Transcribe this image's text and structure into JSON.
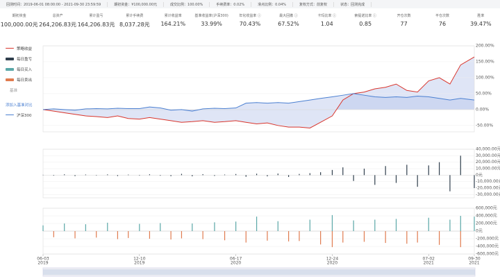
{
  "info": [
    "回测时间：2019-06-01 08:00:00 - 2021-09-30 23:59:59",
    "期初资金：¥100,000.00元",
    "成交比例：100.00%",
    "手续费率：0.02%",
    "滑点比例：0.04%",
    "复权方式：前复权",
    "状态：回测完成"
  ],
  "stats": [
    {
      "label": "期初资金",
      "value": "100,000.00元"
    },
    {
      "label": "总资产",
      "value": "264,206.83元"
    },
    {
      "label": "累计盈亏",
      "value": "164,206.83元"
    },
    {
      "label": "累计手续费",
      "value": "8,037.28元"
    },
    {
      "label": "累计收益率",
      "value": "164.21%"
    },
    {
      "label": "基准收益率(沪深300)",
      "value": "33.99%"
    },
    {
      "label": "年化收益率 ⓘ",
      "value": "70.43%"
    },
    {
      "label": "最大回撤 ⓘ",
      "value": "67.52%"
    },
    {
      "label": "卡玛比率 ⓘ",
      "value": "1.04"
    },
    {
      "label": "索提诺比率 ⓘ",
      "value": "0.85"
    },
    {
      "label": "开仓次数",
      "value": "77"
    },
    {
      "label": "平仓次数",
      "value": "76"
    },
    {
      "label": "胜率",
      "value": "39.47%"
    }
  ],
  "legend": {
    "strategy": "策略收益",
    "pnl": "每日盈亏",
    "buy": "每日买入",
    "sell": "每日卖出",
    "base": "基准",
    "add": "添加入基准对比",
    "hs300": "沪深300"
  },
  "chart_data": {
    "type": "line",
    "x": [
      "2019-06-03",
      "2019-06-24",
      "2019-07-15",
      "2019-08-05",
      "2019-08-26",
      "2019-09-16",
      "2019-10-08",
      "2019-10-28",
      "2019-11-18",
      "2019-12-10",
      "2019-12-30",
      "2020-01-20",
      "2020-02-10",
      "2020-03-02",
      "2020-03-23",
      "2020-04-13",
      "2020-05-06",
      "2020-05-26",
      "2020-06-17",
      "2020-07-07",
      "2020-07-28",
      "2020-08-18",
      "2020-09-08",
      "2020-09-29",
      "2020-10-20",
      "2020-11-10",
      "2020-12-01",
      "2020-12-24",
      "2021-01-14",
      "2021-02-04",
      "2021-02-25",
      "2021-03-18",
      "2021-04-08",
      "2021-04-29",
      "2021-05-20",
      "2021-06-10",
      "2021-07-02",
      "2021-07-23",
      "2021-08-13",
      "2021-09-03",
      "2021-09-30"
    ],
    "xticks": [
      {
        "value": "2019-06-03",
        "label": "06-03",
        "year": "2019"
      },
      {
        "value": "2019-12-10",
        "label": "12-10",
        "year": "2019"
      },
      {
        "value": "2020-06-17",
        "label": "06-17",
        "year": "2020"
      },
      {
        "value": "2020-12-24",
        "label": "12-24",
        "year": "2020"
      },
      {
        "value": "2021-07-02",
        "label": "07-02",
        "year": "2021"
      },
      {
        "value": "2021-09-30",
        "label": "09-30",
        "year": "2021"
      }
    ],
    "ylim": [
      -70,
      200
    ],
    "yticks": [
      {
        "value": 200,
        "label": "200.00%"
      },
      {
        "value": 150,
        "label": "150.00%"
      },
      {
        "value": 100,
        "label": "100.00%"
      },
      {
        "value": 50,
        "label": "50.00%"
      },
      {
        "value": 0,
        "label": "0.00%"
      },
      {
        "value": -50,
        "label": "-50.00%"
      }
    ],
    "series": [
      {
        "name": "策略收益",
        "color": "#d9342b",
        "values": [
          0,
          -5,
          -10,
          -15,
          -20,
          -22,
          -25,
          -20,
          -28,
          -30,
          -25,
          -30,
          -35,
          -40,
          -38,
          -35,
          -40,
          -38,
          -35,
          -40,
          -45,
          -42,
          -50,
          -55,
          -55,
          -58,
          -40,
          -20,
          30,
          50,
          55,
          65,
          70,
          80,
          60,
          55,
          90,
          100,
          80,
          140,
          165
        ]
      },
      {
        "name": "沪深300",
        "color": "#4a7fd1",
        "values": [
          0,
          2,
          0,
          -2,
          2,
          3,
          2,
          4,
          3,
          3,
          8,
          5,
          -2,
          0,
          -5,
          2,
          4,
          3,
          5,
          20,
          22,
          20,
          22,
          20,
          25,
          30,
          35,
          40,
          45,
          50,
          45,
          40,
          38,
          40,
          38,
          42,
          40,
          35,
          30,
          35,
          30
        ]
      }
    ],
    "pnl": {
      "color": "#2f3e4c",
      "ylim": [
        -35000,
        40000
      ],
      "yticks": [
        {
          "value": 40000,
          "label": "40,000.00元"
        },
        {
          "value": 30000,
          "label": "30,000.00元"
        },
        {
          "value": 20000,
          "label": "20,000.00元"
        },
        {
          "value": 10000,
          "label": "10,000.00元"
        },
        {
          "value": 0,
          "label": "0元"
        },
        {
          "value": -10000,
          "label": "-10,000.00元"
        },
        {
          "value": -20000,
          "label": "-20,000.00元"
        },
        {
          "value": -30000,
          "label": "-30,000.00元"
        }
      ],
      "values": [
        500,
        -800,
        1200,
        -1500,
        900,
        -600,
        1100,
        -1400,
        800,
        -700,
        1300,
        -900,
        -1600,
        2000,
        -1800,
        1500,
        -1200,
        900,
        1700,
        -2500,
        2200,
        -1900,
        2400,
        -2800,
        1800,
        3000,
        4500,
        8000,
        12000,
        -9000,
        10000,
        -15000,
        14000,
        -12000,
        16000,
        -18000,
        15000,
        20000,
        -25000,
        30000,
        -20000
      ]
    },
    "trades": {
      "buy_color": "#5aa7a7",
      "sell_color": "#e07b4f",
      "ylim": [
        -600000,
        600000
      ],
      "yticks": [
        {
          "value": 600000,
          "label": "600,000元"
        },
        {
          "value": 400000,
          "label": "400,000元"
        },
        {
          "value": 200000,
          "label": "200,000元"
        },
        {
          "value": 0,
          "label": "0元"
        },
        {
          "value": -200000,
          "label": "-200,000元"
        },
        {
          "value": -400000,
          "label": "-400,000元"
        },
        {
          "value": -600000,
          "label": "-600,000元"
        }
      ],
      "buy": [
        150000,
        0,
        200000,
        0,
        180000,
        0,
        220000,
        0,
        0,
        190000,
        0,
        210000,
        0,
        0,
        200000,
        0,
        230000,
        0,
        250000,
        0,
        380000,
        0,
        260000,
        0,
        0,
        300000,
        0,
        420000,
        0,
        280000,
        0,
        300000,
        0,
        320000,
        0,
        0,
        350000,
        0,
        300000,
        400000,
        380000
      ],
      "sell": [
        0,
        -160000,
        0,
        -190000,
        0,
        -170000,
        0,
        -210000,
        -180000,
        0,
        -200000,
        0,
        -220000,
        -190000,
        0,
        -210000,
        0,
        -240000,
        0,
        -300000,
        0,
        -250000,
        0,
        -270000,
        -260000,
        0,
        -350000,
        -420000,
        -300000,
        0,
        -280000,
        0,
        -310000,
        0,
        -330000,
        -300000,
        0,
        -360000,
        0,
        -420000,
        0
      ]
    }
  }
}
